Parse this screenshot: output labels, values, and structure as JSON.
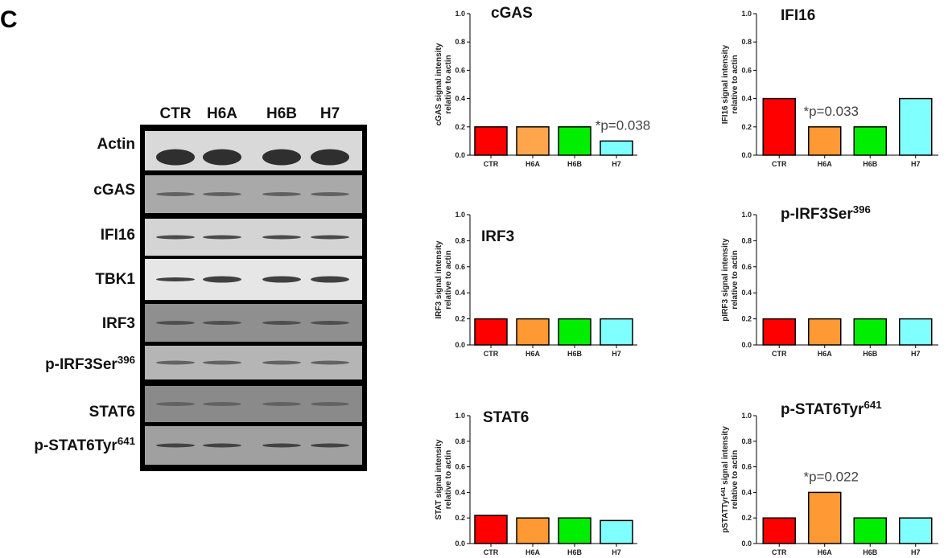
{
  "panel_label": "C",
  "blot": {
    "columns": [
      "CTR",
      "H6A",
      "H6B",
      "H7"
    ],
    "rows": [
      "Actin",
      "cGAS",
      "IFI16",
      "TBK1",
      "IRF3",
      [
        "p-IRF3Ser",
        {
          "sup": "396"
        }
      ],
      "STAT6",
      [
        "p-STAT6Tyr",
        {
          "sup": "641"
        }
      ]
    ]
  },
  "chart_data": [
    {
      "type": "bar",
      "title": "cGAS",
      "ylabel": [
        "cGAS signal intensity",
        "relative to actin"
      ],
      "categories": [
        "CTR",
        "H6A",
        "H6B",
        "H7"
      ],
      "values": [
        0.2,
        0.2,
        0.2,
        0.1
      ],
      "colors": [
        "#ff0000",
        "#ffa64d",
        "#00ee00",
        "#80ffff"
      ],
      "ylim": [
        0,
        1
      ],
      "yticks": [
        {
          "value": 0,
          "label": "0.0"
        },
        0.2,
        0.4,
        0.6,
        0.8,
        {
          "value": 1,
          "label": "1.0"
        }
      ],
      "annotation": {
        "text": "*p=0.038",
        "category": "H7"
      }
    },
    {
      "type": "bar",
      "title": "IFI16",
      "ylabel": [
        "IFI16 signal intensity",
        "relative to actin"
      ],
      "categories": [
        "CTR",
        "H6A",
        "H6B",
        "H7"
      ],
      "values": [
        0.4,
        0.2,
        0.2,
        0.4
      ],
      "colors": [
        "#ff0000",
        "#ff9933",
        "#00ee00",
        "#80ffff"
      ],
      "ylim": [
        0,
        1
      ],
      "yticks": [
        {
          "value": 0,
          "label": "0.0"
        },
        0.2,
        0.4,
        0.6,
        0.8,
        {
          "value": 1,
          "label": "1.0"
        }
      ],
      "annotation": {
        "text": "*p=0.033",
        "category": "H6A"
      }
    },
    {
      "type": "bar",
      "title": "IRF3",
      "ylabel": [
        "IRF3 signal intensity",
        "relative to actin"
      ],
      "categories": [
        "CTR",
        "H6A",
        "H6B",
        "H7"
      ],
      "values": [
        0.2,
        0.2,
        0.2,
        0.2
      ],
      "colors": [
        "#ff0000",
        "#ff9933",
        "#00ee00",
        "#80ffff"
      ],
      "ylim": [
        0,
        1
      ],
      "yticks": [
        {
          "value": 0,
          "label": "0.0"
        },
        0.2,
        0.4,
        0.6,
        0.8,
        {
          "value": 1,
          "label": "1.0"
        }
      ]
    },
    {
      "type": "bar",
      "title": [
        "p-IRF3Ser",
        {
          "sup": "396"
        }
      ],
      "ylabel": [
        "pIRF3 signal intensity",
        "relative to actin"
      ],
      "categories": [
        "CTR",
        "H6A",
        "H6B",
        "H7"
      ],
      "values": [
        0.2,
        0.2,
        0.2,
        0.2
      ],
      "colors": [
        "#ff0000",
        "#ff9933",
        "#00ee00",
        "#80ffff"
      ],
      "ylim": [
        0,
        1
      ],
      "yticks": [
        {
          "value": 0,
          "label": "0.0"
        },
        0.2,
        0.4,
        0.6,
        0.8,
        {
          "value": 1,
          "label": "1.0"
        }
      ]
    },
    {
      "type": "bar",
      "title": "STAT6",
      "ylabel": [
        "STAT signal intensity",
        "relative to actin"
      ],
      "categories": [
        "CTR",
        "H6A",
        "H6B",
        "H7"
      ],
      "values": [
        0.22,
        0.2,
        0.2,
        0.18
      ],
      "colors": [
        "#ff0000",
        "#ff9933",
        "#00ee00",
        "#80ffff"
      ],
      "ylim": [
        0,
        1
      ],
      "yticks": [
        {
          "value": 0,
          "label": "0.0"
        },
        0.2,
        0.4,
        0.6,
        0.8,
        {
          "value": 1,
          "label": "1.0"
        }
      ]
    },
    {
      "type": "bar",
      "title": [
        "p-STAT6Tyr",
        {
          "sup": "641"
        }
      ],
      "ylabel": [
        [
          "pSTATTyr",
          {
            "sup": "641"
          },
          " signal intensity"
        ],
        "relative to actin"
      ],
      "categories": [
        "CTR",
        "H6A",
        "H6B",
        "H7"
      ],
      "values": [
        0.2,
        0.4,
        0.2,
        0.2
      ],
      "colors": [
        "#ff0000",
        "#ff9933",
        "#00ee00",
        "#80ffff"
      ],
      "ylim": [
        0,
        1
      ],
      "yticks": [
        {
          "value": 0,
          "label": "0.0"
        },
        0.2,
        0.4,
        0.6,
        0.8,
        {
          "value": 1,
          "label": "1.0"
        }
      ],
      "annotation": {
        "text": "*p=0.022",
        "category": "H6A"
      }
    }
  ]
}
